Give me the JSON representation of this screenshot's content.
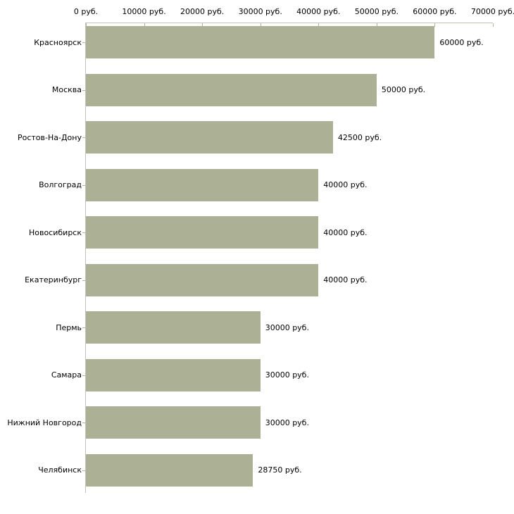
{
  "chart_data": {
    "type": "bar",
    "orientation": "horizontal",
    "title": "",
    "xlabel": "",
    "ylabel": "",
    "unit": "руб.",
    "categories": [
      "Красноярск",
      "Москва",
      "Ростов-На-Дону",
      "Волгоград",
      "Новосибирск",
      "Екатеринбург",
      "Пермь",
      "Самара",
      "Нижний Новгород",
      "Челябинск"
    ],
    "values": [
      60000,
      50000,
      42500,
      40000,
      40000,
      40000,
      30000,
      30000,
      30000,
      28750
    ],
    "value_labels": [
      "60000 руб.",
      "50000 руб.",
      "42500 руб.",
      "40000 руб.",
      "40000 руб.",
      "40000 руб.",
      "30000 руб.",
      "30000 руб.",
      "30000 руб.",
      "28750 руб."
    ],
    "x_ticks": [
      0,
      10000,
      20000,
      30000,
      40000,
      50000,
      60000,
      70000
    ],
    "x_tick_labels": [
      "0 руб.",
      "10000 руб.",
      "20000 руб.",
      "30000 руб.",
      "40000 руб.",
      "50000 руб.",
      "60000 руб.",
      "70000 руб."
    ],
    "xlim": [
      0,
      70000
    ],
    "grid": false,
    "legend": false,
    "axis_position": "top",
    "colors": {
      "bar": "#acb196",
      "axis_line": "#c3c3b4",
      "tick": "#b2b296",
      "y_axis_line": "#c2c2bc",
      "text": "#000000",
      "background": "#ffffff"
    }
  }
}
